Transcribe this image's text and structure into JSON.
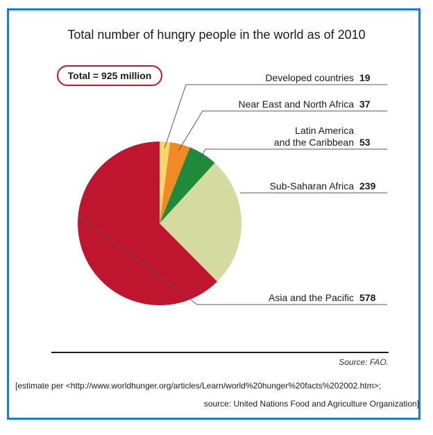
{
  "chart_data": {
    "type": "pie",
    "title": "Total number of hungry people in the world as of 2010",
    "total_label": "Total = 925 million",
    "unit": "million",
    "slices": [
      {
        "label": "Developed countries",
        "value": 19,
        "color": "#f5d76e"
      },
      {
        "label": "Near East and North Africa",
        "value": 37,
        "color": "#f08a24"
      },
      {
        "label": "Latin America and the Caribbean",
        "label_lines": [
          "Latin America",
          "and the Caribbean"
        ],
        "value": 53,
        "color": "#1f8a3a"
      },
      {
        "label": "Sub-Saharan Africa",
        "value": 239,
        "color": "#d4dba0"
      },
      {
        "label": "Asia and the Pacific",
        "value": 578,
        "color": "#c0152f"
      }
    ]
  },
  "footer": {
    "source": "Source: FAO.",
    "note_line1": "[estimate per <http://www.worldhunger.org/articles/Learn/world%20hunger%20facts%202002.htm>;",
    "note_line2": "source: United Nations Food and Agriculture Organization]"
  },
  "colors": {
    "frame": "#1a7fd4",
    "badge_border": "#c0152f",
    "leader": "#555555"
  }
}
